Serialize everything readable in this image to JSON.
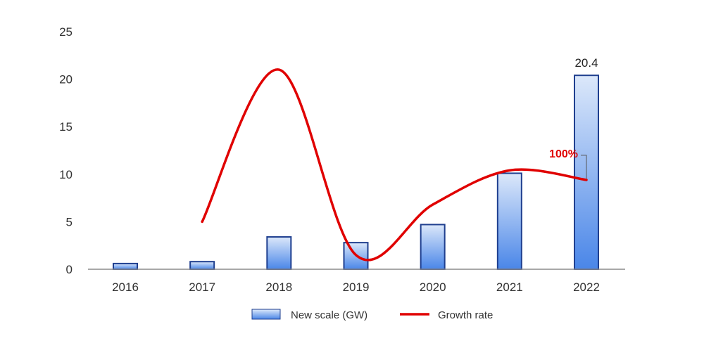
{
  "chart_data": {
    "type": "bar",
    "categories": [
      "2016",
      "2017",
      "2018",
      "2019",
      "2020",
      "2021",
      "2022"
    ],
    "series": [
      {
        "name": "New scale (GW)",
        "type": "bar",
        "values": [
          0.6,
          0.8,
          3.4,
          2.8,
          4.7,
          10.1,
          20.4
        ]
      },
      {
        "name": "Growth rate",
        "type": "line",
        "values": [
          null,
          5.0,
          21.0,
          1.5,
          6.8,
          10.4,
          9.4
        ]
      }
    ],
    "y_ticks": [
      "0",
      "5",
      "10",
      "15",
      "20",
      "25"
    ],
    "ylim": [
      0,
      25
    ],
    "grid": false,
    "legend_position": "bottom",
    "data_labels": [
      {
        "category": "2022",
        "text": "20.4"
      }
    ],
    "annotations": [
      {
        "category": "2022",
        "text": "100%"
      }
    ],
    "colors": {
      "bar_fill_top": "#dce8fa",
      "bar_fill_bottom": "#4a86e8",
      "bar_stroke": "#1f3f8f",
      "line": "#e00000",
      "axis": "#8c8c8c"
    }
  }
}
